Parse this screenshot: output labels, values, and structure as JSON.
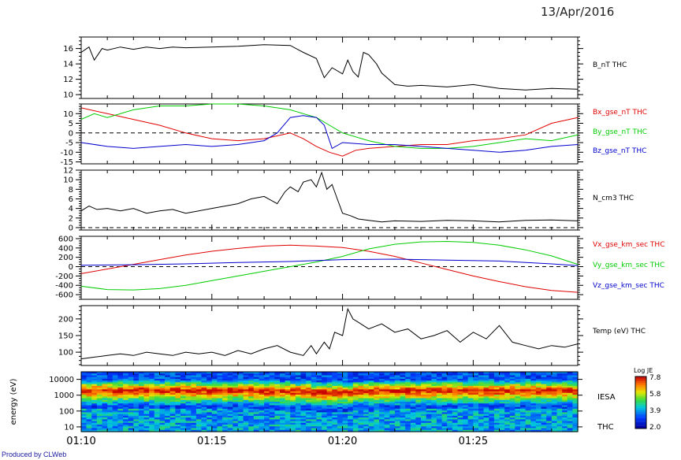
{
  "date": "13/Apr/2016",
  "credit": "Produced by CLWeb",
  "time_ticks": [
    "01:10",
    "01:15",
    "01:20",
    "01:25"
  ],
  "colors": {
    "black": "#000000",
    "red": "#e00000",
    "green": "#00cc00",
    "blue": "#0000cc"
  },
  "chart_data": [
    {
      "type": "line",
      "x_range": [
        "01:10",
        "01:29"
      ],
      "ylim": [
        9.5,
        17.5
      ],
      "y_ticks": [
        10,
        12,
        14,
        16
      ],
      "series": [
        {
          "name": "B_nT THC",
          "color": "#000000",
          "x": [
            0,
            0.3,
            0.5,
            0.8,
            1,
            1.5,
            2,
            2.5,
            3,
            3.5,
            4,
            5,
            6,
            7,
            8,
            8.5,
            9,
            9.3,
            9.6,
            10,
            10.2,
            10.4,
            10.6,
            10.8,
            11,
            11.3,
            11.5,
            12,
            12.5,
            13,
            14,
            15,
            16,
            17,
            18,
            19
          ],
          "y": [
            15.5,
            16.2,
            14.5,
            16,
            15.8,
            16.2,
            15.9,
            16.2,
            16,
            16.2,
            16.1,
            16.2,
            16.3,
            16.5,
            16.4,
            15.5,
            14.7,
            12.2,
            13.5,
            12.7,
            14.5,
            13,
            12.3,
            15.5,
            15.2,
            14,
            12.8,
            11.3,
            11.1,
            11.2,
            11,
            11.3,
            10.8,
            10.6,
            10.8,
            10.7
          ]
        }
      ]
    },
    {
      "type": "line",
      "x_range": [
        "01:10",
        "01:29"
      ],
      "ylim": [
        -16,
        15
      ],
      "y_ticks": [
        -15,
        -10,
        -5,
        0,
        5,
        10
      ],
      "series": [
        {
          "name": "Bx_gse_nT THC",
          "color": "#e00000",
          "x": [
            0,
            1,
            2,
            3,
            4,
            5,
            6,
            7,
            8,
            8.5,
            9,
            9.5,
            10,
            10.5,
            11,
            12,
            13,
            14,
            15,
            16,
            17,
            18,
            19
          ],
          "y": [
            13,
            10,
            7,
            4,
            0,
            -3,
            -4,
            -3,
            0,
            -3,
            -7,
            -10,
            -12,
            -9,
            -8,
            -7,
            -6,
            -6,
            -4,
            -3,
            -1,
            5,
            8
          ]
        },
        {
          "name": "By_gse_nT THC",
          "color": "#00cc00",
          "x": [
            0,
            0.5,
            1,
            2,
            3,
            4,
            5,
            6,
            7,
            8,
            8.5,
            9,
            9.5,
            10,
            11,
            12,
            13,
            14,
            15,
            16,
            17,
            18,
            19
          ],
          "y": [
            7,
            10,
            8,
            12,
            14,
            14,
            15,
            15,
            14,
            12,
            10,
            8,
            4,
            0,
            -4,
            -7,
            -8,
            -8,
            -7,
            -5,
            -3,
            -4,
            -1
          ]
        },
        {
          "name": "Bz_gse_nT THC",
          "color": "#0000cc",
          "x": [
            0,
            1,
            2,
            3,
            4,
            5,
            6,
            7,
            7.5,
            8,
            8.5,
            9,
            9.3,
            9.6,
            10,
            11,
            12,
            13,
            14,
            15,
            16,
            17,
            18,
            19
          ],
          "y": [
            -5,
            -7,
            -8,
            -7,
            -6,
            -7,
            -6,
            -4,
            0,
            8,
            9,
            8,
            4,
            -8,
            -5,
            -6,
            -6,
            -7,
            -8,
            -9,
            -10,
            -9,
            -7,
            -6
          ]
        }
      ]
    },
    {
      "type": "line",
      "x_range": [
        "01:10",
        "01:29"
      ],
      "ylim": [
        -0.5,
        12
      ],
      "y_ticks": [
        0,
        2,
        4,
        6,
        8,
        10,
        12
      ],
      "series": [
        {
          "name": "N_cm3 THC",
          "color": "#000000",
          "x": [
            0,
            0.3,
            0.6,
            1,
            1.5,
            2,
            2.5,
            3,
            3.5,
            4,
            4.5,
            5,
            5.5,
            6,
            6.5,
            7,
            7.5,
            7.8,
            8,
            8.3,
            8.5,
            8.8,
            9,
            9.2,
            9.4,
            9.6,
            9.8,
            10,
            10.3,
            10.6,
            11,
            11.5,
            12,
            13,
            14,
            15,
            16,
            17,
            18,
            19
          ],
          "y": [
            3.5,
            4.5,
            3.8,
            4,
            3.5,
            4,
            3,
            3.5,
            3.8,
            3,
            3.5,
            4,
            4.5,
            5,
            6,
            6.5,
            5,
            7.5,
            8.5,
            7.5,
            9.5,
            10,
            8.5,
            11.5,
            8,
            9,
            6,
            3,
            2.5,
            1.8,
            1.5,
            1.2,
            1.4,
            1.3,
            1.5,
            1.4,
            1.2,
            1.5,
            1.6,
            1.4
          ]
        }
      ]
    },
    {
      "type": "line",
      "x_range": [
        "01:10",
        "01:29"
      ],
      "ylim": [
        -700,
        650
      ],
      "y_ticks": [
        -600,
        -400,
        -200,
        0,
        200,
        400,
        600
      ],
      "series": [
        {
          "name": "Vx_gse_km_sec THC",
          "color": "#e00000",
          "x": [
            0,
            1,
            2,
            3,
            4,
            5,
            6,
            7,
            8,
            9,
            10,
            11,
            12,
            13,
            14,
            15,
            16,
            17,
            18,
            19
          ],
          "y": [
            -150,
            -50,
            50,
            150,
            250,
            330,
            390,
            440,
            460,
            440,
            410,
            330,
            220,
            80,
            -60,
            -200,
            -320,
            -430,
            -510,
            -550
          ]
        },
        {
          "name": "Vy_gse_km_sec THC",
          "color": "#00cc00",
          "x": [
            0,
            1,
            2,
            3,
            4,
            5,
            6,
            7,
            8,
            9,
            10,
            11,
            12,
            13,
            14,
            15,
            16,
            17,
            18,
            19
          ],
          "y": [
            -420,
            -490,
            -500,
            -470,
            -400,
            -300,
            -200,
            -100,
            0,
            100,
            220,
            380,
            480,
            530,
            540,
            520,
            460,
            360,
            230,
            50
          ]
        },
        {
          "name": "Vz_gse_km_sec THC",
          "color": "#0000cc",
          "x": [
            0,
            2,
            4,
            6,
            8,
            10,
            12,
            14,
            16,
            18,
            19
          ],
          "y": [
            30,
            40,
            60,
            90,
            110,
            150,
            160,
            140,
            120,
            60,
            20
          ]
        }
      ]
    },
    {
      "type": "line",
      "x_range": [
        "01:10",
        "01:29"
      ],
      "ylim": [
        60,
        240
      ],
      "y_ticks": [
        100,
        150,
        200
      ],
      "series": [
        {
          "name": "Temp (eV) THC",
          "color": "#000000",
          "x": [
            0,
            0.5,
            1,
            1.5,
            2,
            2.5,
            3,
            3.5,
            4,
            4.5,
            5,
            5.5,
            6,
            6.5,
            7,
            7.5,
            8,
            8.5,
            8.8,
            9,
            9.3,
            9.5,
            9.7,
            10,
            10.2,
            10.4,
            10.6,
            11,
            11.5,
            12,
            12.5,
            13,
            13.5,
            14,
            14.5,
            15,
            15.5,
            16,
            16.5,
            17,
            17.5,
            18,
            18.5,
            19
          ],
          "y": [
            80,
            85,
            90,
            95,
            90,
            100,
            95,
            90,
            100,
            95,
            100,
            90,
            105,
            95,
            110,
            120,
            100,
            90,
            120,
            95,
            130,
            110,
            160,
            150,
            230,
            200,
            190,
            170,
            185,
            160,
            170,
            140,
            150,
            165,
            130,
            160,
            140,
            180,
            130,
            120,
            110,
            120,
            115,
            125
          ]
        }
      ]
    },
    {
      "type": "heatmap",
      "name": "IESA",
      "ylabel": "energy (eV)",
      "y_scale": "log",
      "ylim": [
        5,
        30000
      ],
      "y_ticks": [
        10,
        100,
        1000,
        10000
      ],
      "colorbar": {
        "title": "Log JE",
        "ticks": [
          7.8,
          5.8,
          3.9,
          2.0
        ]
      },
      "band_peak_energy": [
        2000,
        2000,
        2000,
        2000,
        1800,
        1500,
        1800,
        2000,
        2000,
        2000,
        2000
      ]
    }
  ]
}
